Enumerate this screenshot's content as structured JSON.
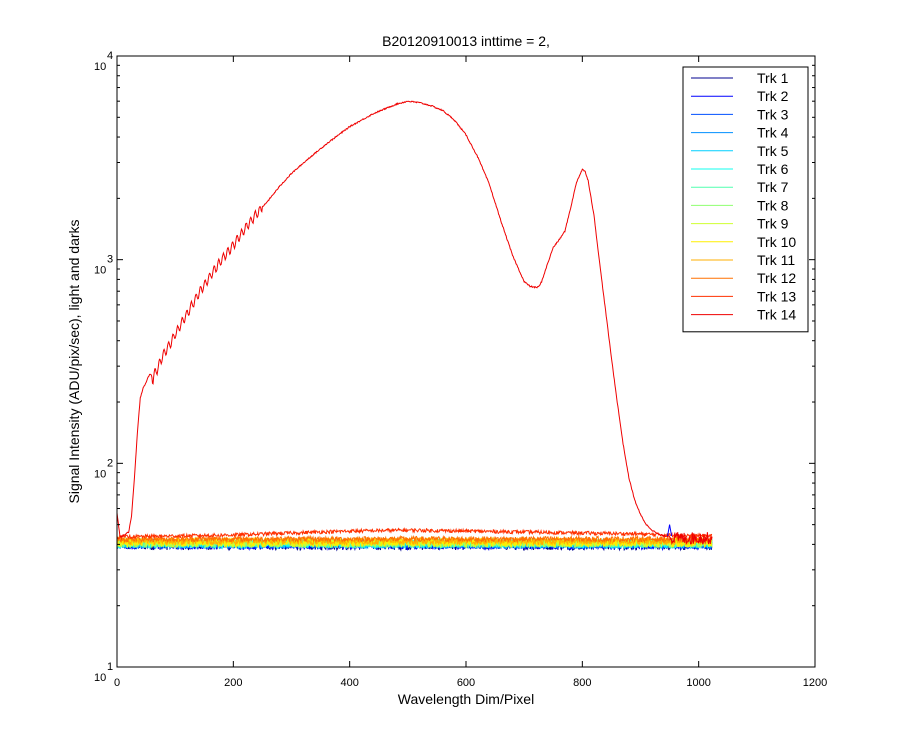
{
  "chart_data": {
    "type": "line",
    "title": "B20120910013 inttime = 2,",
    "xlabel": "Wavelength Dim/Pixel",
    "ylabel": "Signal Intensity (ADU/pix/sec), light and darks",
    "xlim": [
      0,
      1200
    ],
    "ylim": [
      10,
      10000
    ],
    "yscale": "log",
    "grid": false,
    "legend_position": "top-right",
    "x_ticks": [
      0,
      200,
      400,
      600,
      800,
      1000,
      1200
    ],
    "x_tick_labels": [
      "0",
      "200",
      "400",
      "600",
      "800",
      "1000",
      "1200"
    ],
    "y_ticks": [
      10,
      100,
      1000,
      10000
    ],
    "y_tick_labels": [
      {
        "base": "10",
        "exp": "1"
      },
      {
        "base": "10",
        "exp": "2"
      },
      {
        "base": "10",
        "exp": "3"
      },
      {
        "base": "10",
        "exp": "4"
      }
    ],
    "series": [
      {
        "name": "Trk 1",
        "color": "#00008f",
        "level": 39.5,
        "noise": 0.05
      },
      {
        "name": "Trk 2",
        "color": "#0000ff",
        "level": 39.8,
        "noise": 0.05
      },
      {
        "name": "Trk 3",
        "color": "#004fff",
        "level": 40.0,
        "noise": 0.05
      },
      {
        "name": "Trk 4",
        "color": "#008fff",
        "level": 40.2,
        "noise": 0.05
      },
      {
        "name": "Trk 5",
        "color": "#00cfff",
        "level": 40.3,
        "noise": 0.05
      },
      {
        "name": "Trk 6",
        "color": "#10ffef",
        "level": 40.4,
        "noise": 0.05
      },
      {
        "name": "Trk 7",
        "color": "#50ffaf",
        "level": 40.5,
        "noise": 0.05
      },
      {
        "name": "Trk 8",
        "color": "#8fff70",
        "level": 40.6,
        "noise": 0.05
      },
      {
        "name": "Trk 9",
        "color": "#cfff30",
        "level": 40.8,
        "noise": 0.05
      },
      {
        "name": "Trk 10",
        "color": "#ffef00",
        "level": 41.0,
        "noise": 0.05
      },
      {
        "name": "Trk 11",
        "color": "#ffaf00",
        "level": 41.5,
        "noise": 0.04
      },
      {
        "name": "Trk 12",
        "color": "#ff7000",
        "level": 42.5,
        "noise": 0.03
      },
      {
        "name": "Trk 13",
        "color": "#ff3000",
        "level": 43.5,
        "noise": 0.02,
        "x": [
          0,
          100,
          200,
          300,
          400,
          500,
          600,
          700,
          800,
          900,
          950,
          1023
        ],
        "y": [
          43.5,
          44,
          44.5,
          45.5,
          46.5,
          47,
          46.5,
          46,
          45.5,
          45,
          44.5,
          44
        ]
      },
      {
        "name": "Trk 14",
        "color": "#ef0000",
        "x": [
          0,
          5,
          10,
          20,
          25,
          30,
          35,
          40,
          45,
          50,
          55,
          58,
          62,
          66,
          70,
          75,
          80,
          90,
          100,
          120,
          140,
          160,
          180,
          200,
          220,
          240,
          260,
          280,
          300,
          330,
          360,
          400,
          440,
          480,
          500,
          520,
          540,
          560,
          580,
          600,
          620,
          640,
          660,
          680,
          700,
          710,
          720,
          725,
          730,
          740,
          750,
          760,
          770,
          780,
          790,
          800,
          805,
          810,
          820,
          830,
          840,
          850,
          860,
          870,
          880,
          890,
          900,
          910,
          920,
          930,
          940,
          945,
          950
        ],
        "y": [
          57,
          44,
          44,
          46,
          55,
          85,
          140,
          210,
          235,
          250,
          270,
          275,
          255,
          285,
          290,
          320,
          345,
          380,
          430,
          540,
          680,
          830,
          1000,
          1180,
          1420,
          1680,
          1950,
          2300,
          2650,
          3150,
          3700,
          4500,
          5200,
          5800,
          6000,
          5900,
          5700,
          5400,
          4850,
          4100,
          3200,
          2350,
          1550,
          1050,
          780,
          740,
          730,
          735,
          780,
          950,
          1150,
          1250,
          1380,
          1800,
          2400,
          2780,
          2700,
          2450,
          1650,
          950,
          560,
          330,
          200,
          125,
          85,
          66,
          56,
          50,
          47,
          45,
          44,
          44,
          44
        ]
      }
    ]
  }
}
